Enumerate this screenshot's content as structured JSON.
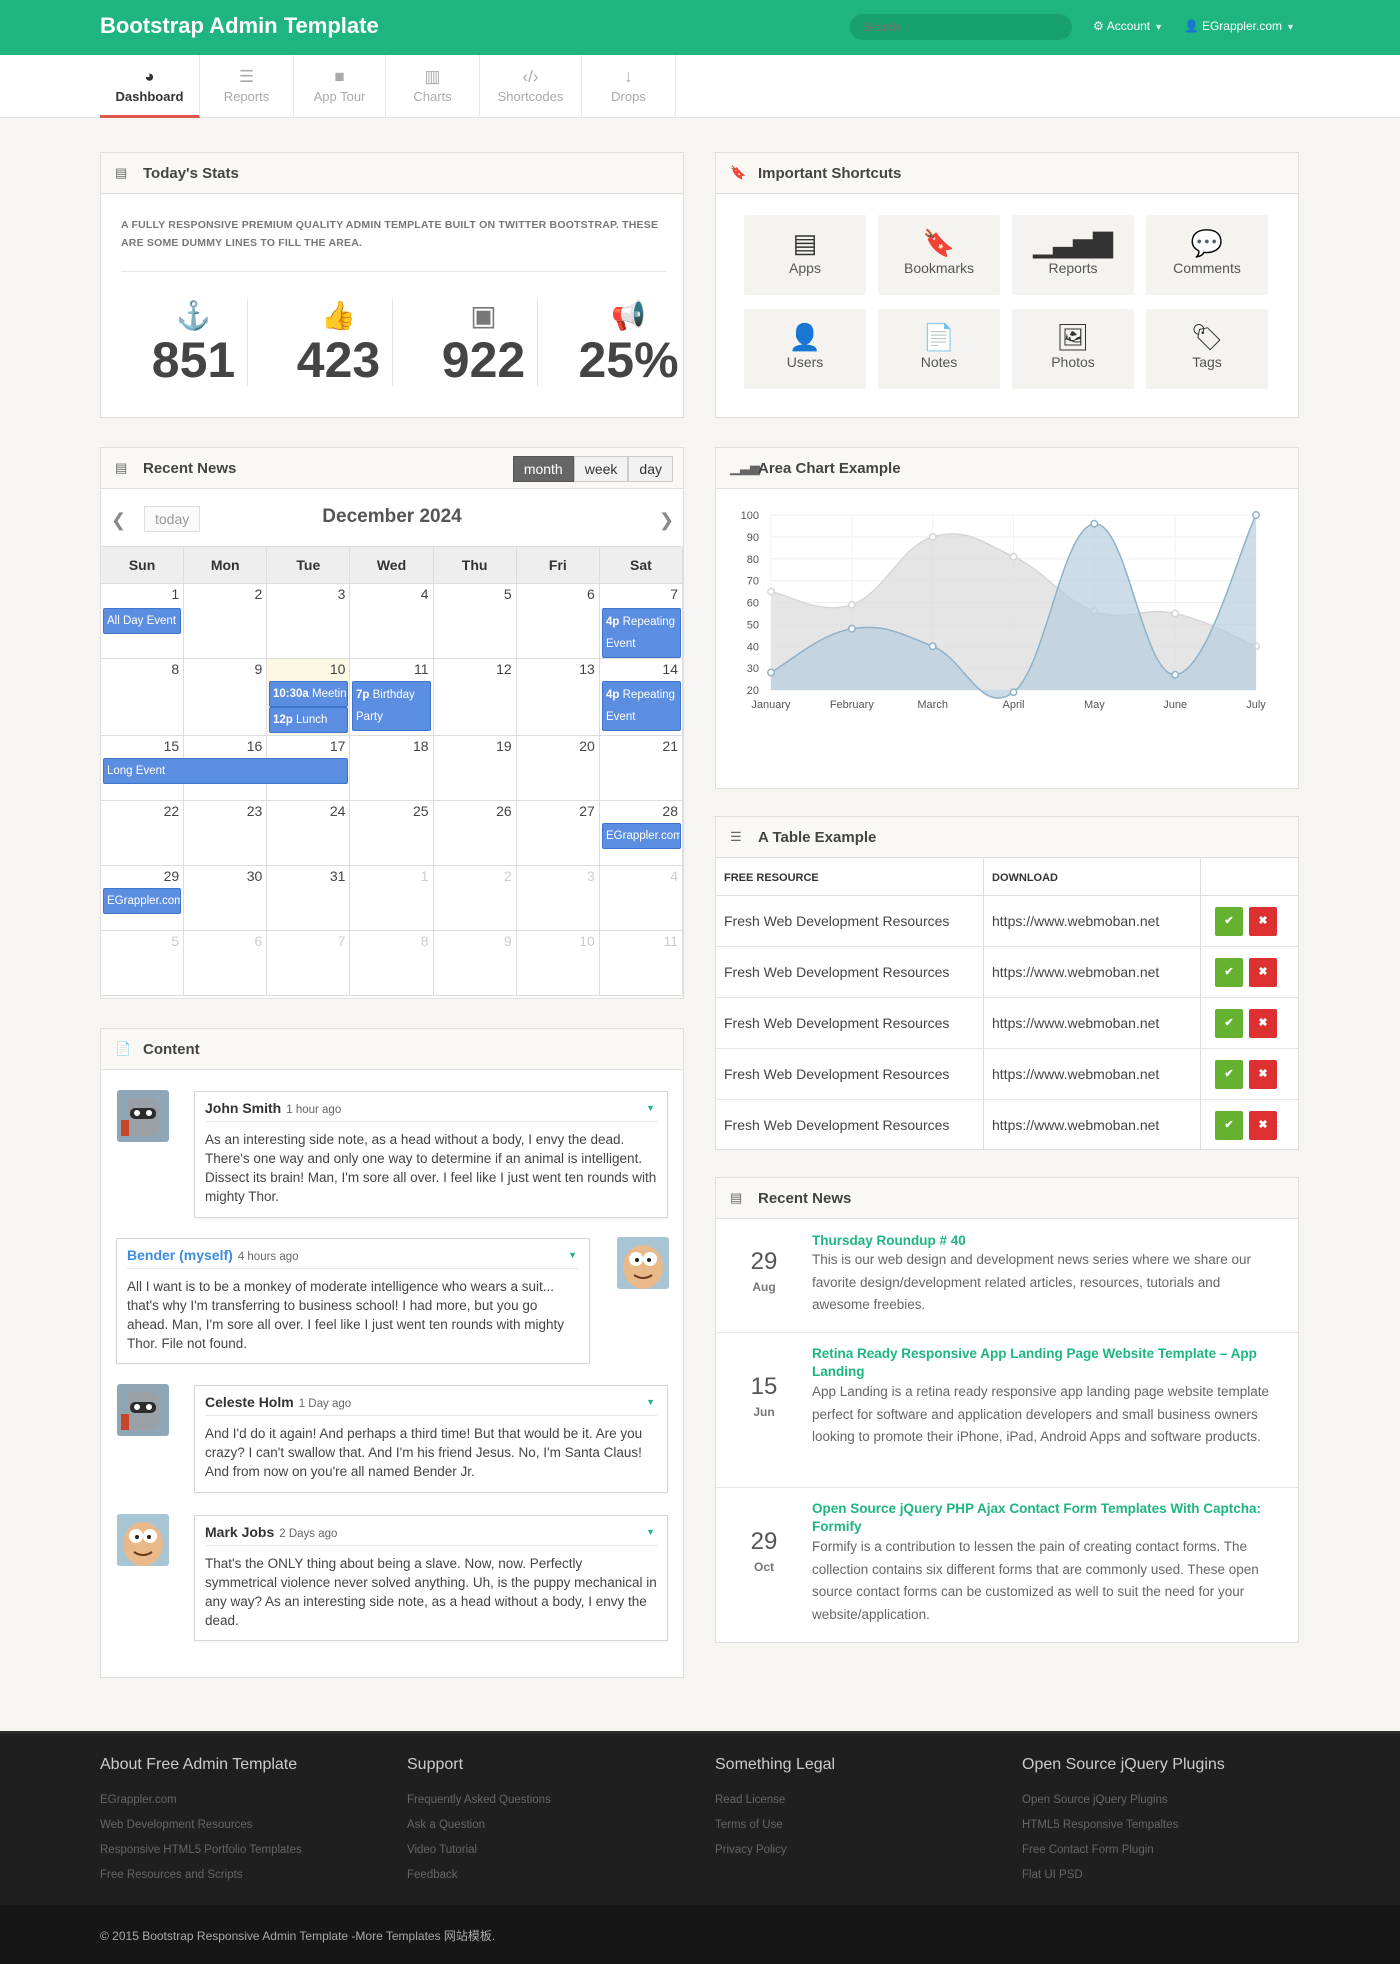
{
  "app": {
    "brand": "Bootstrap Admin Template"
  },
  "topbar": {
    "search_placeholder": "Search",
    "account_label": "Account",
    "user_label": "EGrappler.com"
  },
  "subnav": [
    {
      "label": "Dashboard",
      "icon": "dashboard-icon",
      "active": true
    },
    {
      "label": "Reports",
      "icon": "list-icon"
    },
    {
      "label": "App Tour",
      "icon": "video-icon"
    },
    {
      "label": "Charts",
      "icon": "bar-chart-icon"
    },
    {
      "label": "Shortcodes",
      "icon": "code-icon"
    },
    {
      "label": "Drops",
      "icon": "arrow-down-icon"
    }
  ],
  "stats": {
    "title": "Today's Stats",
    "description": "A fully responsive premium quality admin template built on Twitter Bootstrap. These are some dummy lines to fill the area.",
    "items": [
      {
        "value": "851",
        "icon": "anchor-icon"
      },
      {
        "value": "423",
        "icon": "thumbs-up-icon"
      },
      {
        "value": "922",
        "icon": "twitter-icon"
      },
      {
        "value": "25%",
        "icon": "bullhorn-icon"
      }
    ]
  },
  "shortcuts": {
    "title": "Important Shortcuts",
    "items": [
      {
        "label": "Apps",
        "icon": "list-alt-icon"
      },
      {
        "label": "Bookmarks",
        "icon": "bookmark-icon"
      },
      {
        "label": "Reports",
        "icon": "signal-icon"
      },
      {
        "label": "Comments",
        "icon": "comment-icon"
      },
      {
        "label": "Users",
        "icon": "user-icon"
      },
      {
        "label": "Notes",
        "icon": "file-icon"
      },
      {
        "label": "Photos",
        "icon": "picture-icon"
      },
      {
        "label": "Tags",
        "icon": "tag-icon"
      }
    ]
  },
  "calendar": {
    "title": "Recent News",
    "views": [
      "month",
      "week",
      "day"
    ],
    "active_view": "month",
    "today_label": "today",
    "month_title": "December 2024",
    "weekdays": [
      "Sun",
      "Mon",
      "Tue",
      "Wed",
      "Thu",
      "Fri",
      "Sat"
    ],
    "weeks": [
      [
        "1",
        "2",
        "3",
        "4",
        "5",
        "6",
        "7"
      ],
      [
        "8",
        "9",
        "10",
        "11",
        "12",
        "13",
        "14"
      ],
      [
        "15",
        "16",
        "17",
        "18",
        "19",
        "20",
        "21"
      ],
      [
        "22",
        "23",
        "24",
        "25",
        "26",
        "27",
        "28"
      ],
      [
        "29",
        "30",
        "31",
        "1",
        "2",
        "3",
        "4"
      ],
      [
        "5",
        "6",
        "7",
        "8",
        "9",
        "10",
        "11"
      ]
    ],
    "events": [
      {
        "time": "",
        "title": "All Day Event"
      },
      {
        "time": "4p",
        "title": "Repeating Event"
      },
      {
        "time": "10:30a",
        "title": "Meeting"
      },
      {
        "time": "12p",
        "title": "Lunch"
      },
      {
        "time": "7p",
        "title": "Birthday Party"
      },
      {
        "time": "4p",
        "title": "Repeating Event"
      },
      {
        "time": "",
        "title": "Long Event"
      },
      {
        "time": "",
        "title": "EGrappler.com"
      },
      {
        "time": "",
        "title": "EGrappler.com"
      }
    ]
  },
  "area_chart": {
    "title": "Area Chart Example"
  },
  "chart_data": {
    "type": "area",
    "categories": [
      "January",
      "February",
      "March",
      "April",
      "May",
      "June",
      "July"
    ],
    "series": [
      {
        "values": [
          65,
          59,
          90,
          81,
          56,
          55,
          40
        ],
        "color": "#dcdcdc"
      },
      {
        "values": [
          28,
          48,
          40,
          19,
          96,
          27,
          100
        ],
        "color": "#b7cfdf"
      }
    ],
    "ylim": [
      20,
      100
    ],
    "yticks": [
      "100",
      "90",
      "80",
      "70",
      "60",
      "50",
      "40",
      "30",
      "20"
    ],
    "grid": true
  },
  "table": {
    "title": "A Table Example",
    "headers": [
      "FREE RESOURCE",
      "DOWNLOAD"
    ],
    "rows": [
      {
        "resource": "Fresh Web Development Resources",
        "download": "https://www.webmoban.net"
      },
      {
        "resource": "Fresh Web Development Resources",
        "download": "https://www.webmoban.net"
      },
      {
        "resource": "Fresh Web Development Resources",
        "download": "https://www.webmoban.net"
      },
      {
        "resource": "Fresh Web Development Resources",
        "download": "https://www.webmoban.net"
      },
      {
        "resource": "Fresh Web Development Resources",
        "download": "https://www.webmoban.net"
      }
    ]
  },
  "content": {
    "title": "Content",
    "comments": [
      {
        "name": "John Smith",
        "time": "1 hour ago",
        "text": "As an interesting side note, as a head without a body, I envy the dead. There's one way and only one way to determine if an animal is intelligent. Dissect its brain! Man, I'm sore all over. I feel like I just went ten rounds with mighty Thor."
      },
      {
        "name": "Bender (myself)",
        "time": "4 hours ago",
        "text": "All I want is to be a monkey of moderate intelligence who wears a suit... that's why I'm transferring to business school! I had more, but you go ahead. Man, I'm sore all over. I feel like I just went ten rounds with mighty Thor. File not found."
      },
      {
        "name": "Celeste Holm",
        "time": "1 Day ago",
        "text": "And I'd do it again! And perhaps a third time! But that would be it. Are you crazy? I can't swallow that. And I'm his friend Jesus. No, I'm Santa Claus! And from now on you're all named Bender Jr."
      },
      {
        "name": "Mark Jobs",
        "time": "2 Days ago",
        "text": "That's the ONLY thing about being a slave. Now, now. Perfectly symmetrical violence never solved anything. Uh, is the puppy mechanical in any way? As an interesting side note, as a head without a body, I envy the dead."
      }
    ]
  },
  "news": {
    "title": "Recent News",
    "items": [
      {
        "day": "29",
        "month": "Aug",
        "title": "Thursday Roundup # 40",
        "body": "This is our web design and development news series where we share our favorite design/development related articles, resources, tutorials and awesome freebies."
      },
      {
        "day": "15",
        "month": "Jun",
        "title": "Retina Ready Responsive App Landing Page Website Template – App Landing",
        "body": "App Landing is a retina ready responsive app landing page website template perfect for software and application developers and small business owners looking to promote their iPhone, iPad, Android Apps and software products."
      },
      {
        "day": "29",
        "month": "Oct",
        "title": "Open Source jQuery PHP Ajax Contact Form Templates With Captcha: Formify",
        "body": "Formify is a contribution to lessen the pain of creating contact forms. The collection contains six different forms that are commonly used. These open source contact forms can be customized as well to suit the need for your website/application."
      }
    ]
  },
  "footer": {
    "columns": [
      {
        "title": "About Free Admin Template",
        "links": [
          "EGrappler.com",
          "Web Development Resources",
          "Responsive HTML5 Portfolio Templates",
          "Free Resources and Scripts"
        ]
      },
      {
        "title": "Support",
        "links": [
          "Frequently Asked Questions",
          "Ask a Question",
          "Video Tutorial",
          "Feedback"
        ]
      },
      {
        "title": "Something Legal",
        "links": [
          "Read License",
          "Terms of Use",
          "Privacy Policy"
        ]
      },
      {
        "title": "Open Source jQuery Plugins",
        "links": [
          "Open Source jQuery Plugins",
          "HTML5 Responsive Tempaltes",
          "Free Contact Form Plugin",
          "Flat UI PSD"
        ]
      }
    ],
    "copyright": "© 2015 Bootstrap Responsive Admin Template -More Templates 网站模板."
  }
}
